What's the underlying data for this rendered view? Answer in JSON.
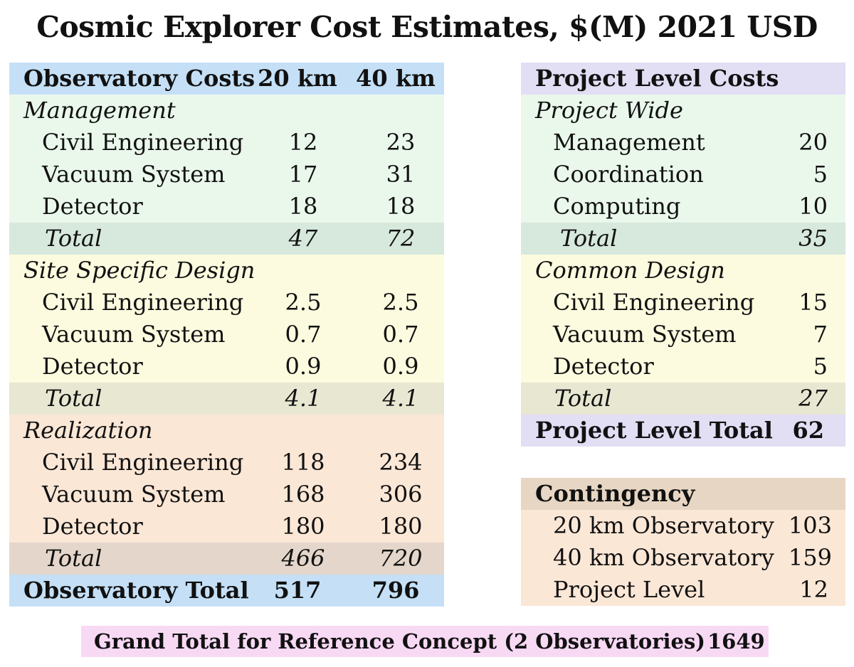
{
  "title": "Cosmic Explorer Cost Estimates, $(M) 2021 USD",
  "observatory": {
    "header": {
      "label": "Observatory Costs",
      "col1": "20 km",
      "col2": "40 km"
    },
    "sections": [
      {
        "name": "Management",
        "rows": [
          {
            "label": "Civil Engineering",
            "v1": "12",
            "v2": "23"
          },
          {
            "label": "Vacuum System",
            "v1": "17",
            "v2": "31"
          },
          {
            "label": "Detector",
            "v1": "18",
            "v2": "18"
          }
        ],
        "total": {
          "label": "Total",
          "v1": "47",
          "v2": "72"
        }
      },
      {
        "name": "Site Specific Design",
        "rows": [
          {
            "label": "Civil Engineering",
            "v1": "2.5",
            "v2": "2.5"
          },
          {
            "label": "Vacuum System",
            "v1": "0.7",
            "v2": "0.7"
          },
          {
            "label": "Detector",
            "v1": "0.9",
            "v2": "0.9"
          }
        ],
        "total": {
          "label": "Total",
          "v1": "4.1",
          "v2": "4.1"
        }
      },
      {
        "name": "Realization",
        "rows": [
          {
            "label": "Civil Engineering",
            "v1": "118",
            "v2": "234"
          },
          {
            "label": "Vacuum System",
            "v1": "168",
            "v2": "306"
          },
          {
            "label": "Detector",
            "v1": "180",
            "v2": "180"
          }
        ],
        "total": {
          "label": "Total",
          "v1": "466",
          "v2": "720"
        }
      }
    ],
    "grand_total": {
      "label": "Observatory Total",
      "v1": "517",
      "v2": "796"
    }
  },
  "project": {
    "header": "Project Level Costs",
    "sections": [
      {
        "name": "Project Wide",
        "rows": [
          {
            "label": "Management",
            "value": "20"
          },
          {
            "label": "Coordination",
            "value": "5"
          },
          {
            "label": "Computing",
            "value": "10"
          }
        ],
        "total": {
          "label": "Total",
          "value": "35"
        }
      },
      {
        "name": "Common Design",
        "rows": [
          {
            "label": "Civil Engineering",
            "value": "15"
          },
          {
            "label": "Vacuum System",
            "value": "7"
          },
          {
            "label": "Detector",
            "value": "5"
          }
        ],
        "total": {
          "label": "Total",
          "value": "27"
        }
      }
    ],
    "grand_total": {
      "label": "Project Level Total",
      "value": "62"
    }
  },
  "contingency": {
    "header": "Contingency",
    "rows": [
      {
        "label": "20 km Observatory",
        "value": "103"
      },
      {
        "label": "40 km Observatory",
        "value": "159"
      },
      {
        "label": "Project Level",
        "value": "12"
      }
    ]
  },
  "grand_total": {
    "label": "Grand Total for Reference Concept (2 Observatories)",
    "value": "1649"
  }
}
